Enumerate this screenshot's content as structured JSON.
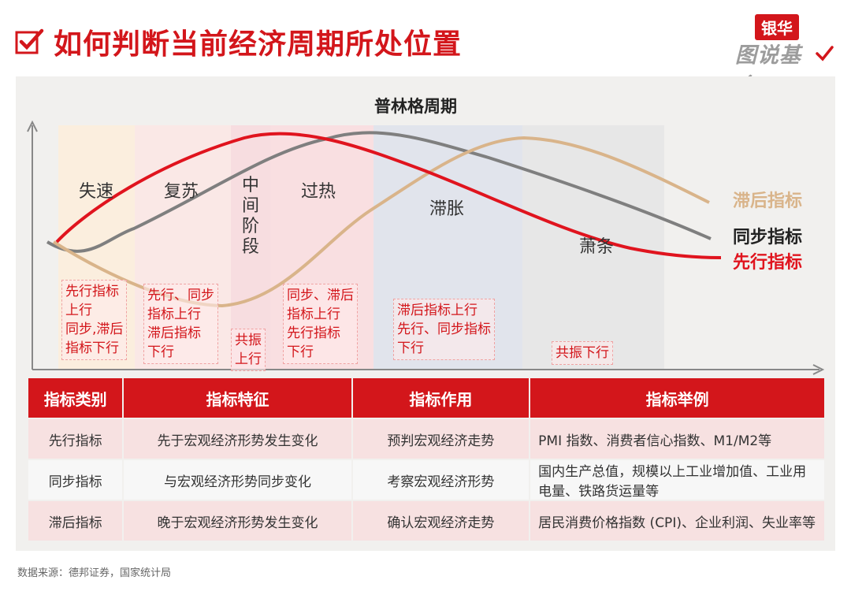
{
  "header": {
    "title": "如何判断当前经济周期所处位置",
    "brand_top": "银华",
    "brand_bottom": "图说基金"
  },
  "diagram": {
    "title": "普林格周期",
    "phases": [
      "失速",
      "复苏",
      "中间阶段",
      "过热",
      "滞胀",
      "萧条"
    ],
    "legend": {
      "lagging": "滞后指标",
      "coincident": "同步指标",
      "leading": "先行指标"
    },
    "notes": [
      "先行指标\n上行\n同步,滞后\n指标下行",
      "先行、同步\n指标上行\n滞后指标\n下行",
      "共振\n上行",
      "同步、滞后\n指标上行\n先行指标\n下行",
      "滞后指标上行\n先行、同步指标\n下行",
      "共振下行"
    ],
    "colors": {
      "leading": "#e0141e",
      "coincident": "#7f7f7f",
      "lagging": "#d9b48a",
      "accent": "#d3161b"
    }
  },
  "table": {
    "headers": [
      "指标类别",
      "指标特征",
      "指标作用",
      "指标举例"
    ],
    "rows": [
      [
        "先行指标",
        "先于宏观经济形势发生变化",
        "预判宏观经济走势",
        "PMI 指数、消费者信心指数、M1/M2等"
      ],
      [
        "同步指标",
        "与宏观经济形势同步变化",
        "考察宏观经济形势",
        "国内生产总值，规模以上工业增加值、工业用电量、铁路货运量等"
      ],
      [
        "滞后指标",
        "晚于宏观经济形势发生变化",
        "确认宏观经济走势",
        "居民消费价格指数 (CPI)、企业利润、失业率等"
      ]
    ]
  },
  "footer": {
    "source": "数据来源：德邦证券，国家统计局"
  }
}
